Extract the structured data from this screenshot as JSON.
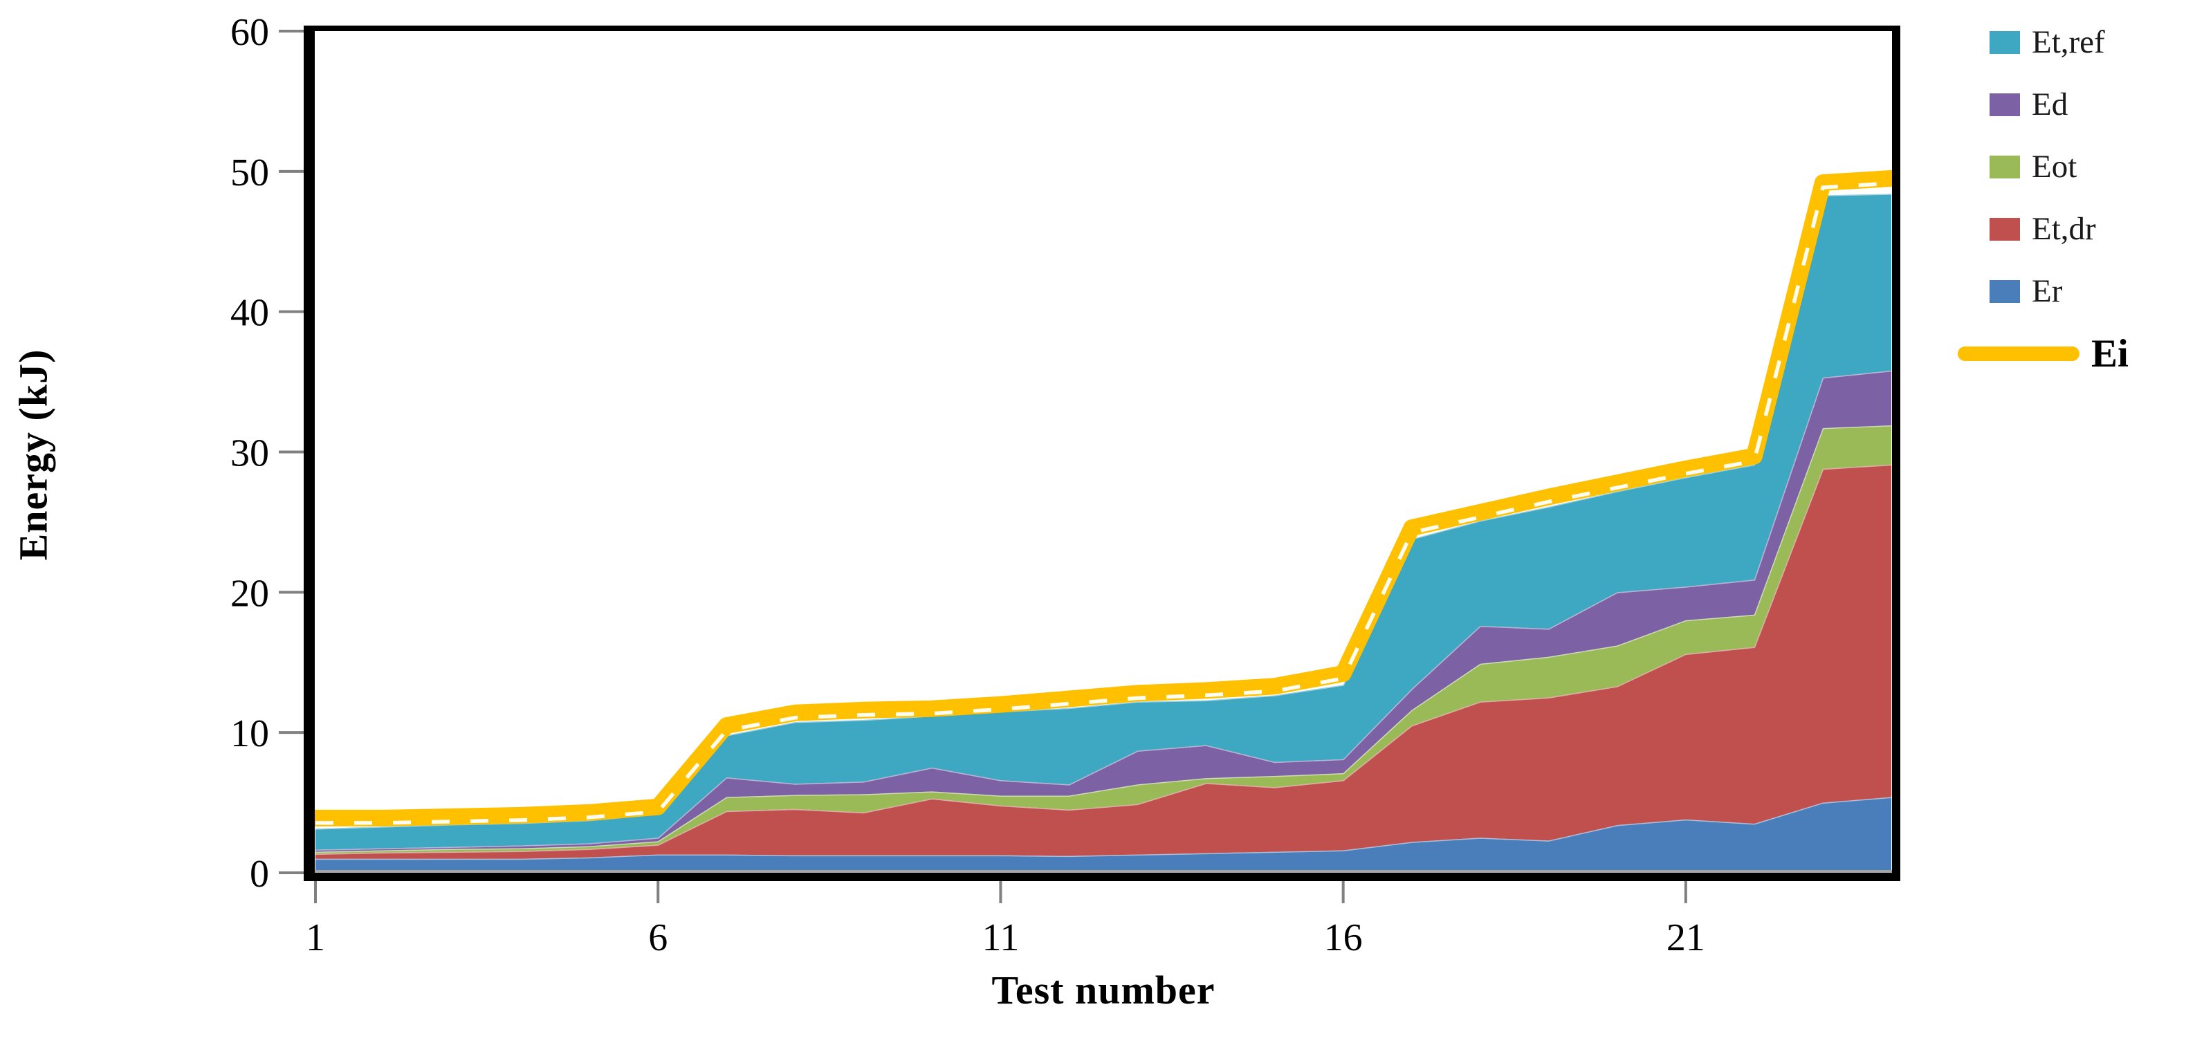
{
  "figure": {
    "background": "#ffffff",
    "y_axis": {
      "title": "Energy (kJ)",
      "min": 0,
      "max": 60,
      "tick_step": 10,
      "tick_labels": [
        "0",
        "10",
        "20",
        "30",
        "40",
        "50",
        "60"
      ],
      "tick_color": "#808080",
      "axis_color": "#000000"
    },
    "x_axis": {
      "title": "Test number",
      "tick_labels": [
        "1",
        "6",
        "11",
        "16",
        "21"
      ],
      "tick_categories": [
        1,
        6,
        11,
        16,
        21
      ],
      "tick_color": "#808080",
      "axis_color": "#000000"
    },
    "legend": [
      {
        "label": "Et,ref",
        "color": "#3EA7C1",
        "swatch": "square",
        "bold": false
      },
      {
        "label": "Ed",
        "color": "#7C61A5",
        "swatch": "square",
        "bold": false
      },
      {
        "label": "Eot",
        "color": "#9ABA58",
        "swatch": "square",
        "bold": false
      },
      {
        "label": "Et,dr",
        "color": "#C0504D",
        "swatch": "square",
        "bold": false
      },
      {
        "label": "Er",
        "color": "#4A7EBA",
        "swatch": "square",
        "bold": false
      },
      {
        "label": "Ei",
        "color": "#FFC000",
        "swatch": "line",
        "bold": true
      }
    ]
  },
  "chart_data": {
    "type": "area",
    "stacked": true,
    "title": "",
    "xlabel": "Test number",
    "ylabel": "Energy (kJ)",
    "ylim": [
      0,
      60
    ],
    "xlim": [
      1,
      24
    ],
    "grid": false,
    "legend_position": "right",
    "x": [
      1,
      2,
      3,
      4,
      5,
      6,
      7,
      8,
      9,
      10,
      11,
      12,
      13,
      14,
      15,
      16,
      17,
      18,
      19,
      20,
      21,
      22,
      23,
      24
    ],
    "series": [
      {
        "name": "Er",
        "type": "area",
        "color": "#4A7EBA",
        "values": [
          1.0,
          1.0,
          1.0,
          1.0,
          1.1,
          1.3,
          1.3,
          1.25,
          1.25,
          1.25,
          1.25,
          1.2,
          1.3,
          1.4,
          1.5,
          1.6,
          2.2,
          2.5,
          2.3,
          3.4,
          3.8,
          3.5,
          5.0,
          5.4
        ]
      },
      {
        "name": "Et,dr",
        "type": "area",
        "color": "#C0504D",
        "values": [
          0.35,
          0.45,
          0.5,
          0.55,
          0.6,
          0.7,
          3.1,
          3.3,
          3.05,
          4.05,
          3.55,
          3.3,
          3.6,
          5.0,
          4.6,
          5.0,
          8.3,
          9.7,
          10.2,
          9.9,
          11.8,
          12.6,
          23.8,
          23.7
        ]
      },
      {
        "name": "Eot",
        "type": "area",
        "color": "#9ABA58",
        "values": [
          0.15,
          0.15,
          0.2,
          0.2,
          0.2,
          0.25,
          1.0,
          1.0,
          1.3,
          0.5,
          0.7,
          1.0,
          1.4,
          0.35,
          0.8,
          0.5,
          1.1,
          2.7,
          2.9,
          2.9,
          2.4,
          2.3,
          2.9,
          2.8
        ]
      },
      {
        "name": "Ed",
        "type": "area",
        "color": "#7C61A5",
        "values": [
          0.15,
          0.15,
          0.15,
          0.2,
          0.2,
          0.25,
          1.4,
          0.8,
          0.9,
          1.7,
          1.1,
          0.8,
          2.4,
          2.35,
          1.0,
          1.0,
          1.5,
          2.7,
          2.0,
          3.8,
          2.4,
          2.5,
          3.6,
          3.9
        ]
      },
      {
        "name": "Et,ref",
        "type": "area",
        "color": "#3EA7C1",
        "values": [
          1.5,
          1.55,
          1.6,
          1.6,
          1.65,
          1.7,
          3.0,
          4.4,
          4.4,
          3.7,
          4.9,
          5.45,
          3.5,
          3.2,
          4.75,
          5.3,
          10.7,
          7.5,
          8.7,
          7.2,
          7.8,
          8.2,
          13.0,
          12.6
        ]
      },
      {
        "name": "Ei",
        "type": "line",
        "color": "#FFC000",
        "dash_overlay_color": "#ffffff",
        "values": [
          3.9,
          3.9,
          4.0,
          4.1,
          4.3,
          4.7,
          10.5,
          11.4,
          11.6,
          11.7,
          12.0,
          12.4,
          12.8,
          13.0,
          13.3,
          14.2,
          24.6,
          25.7,
          26.8,
          27.8,
          28.8,
          29.7,
          49.2,
          49.5
        ]
      }
    ]
  }
}
